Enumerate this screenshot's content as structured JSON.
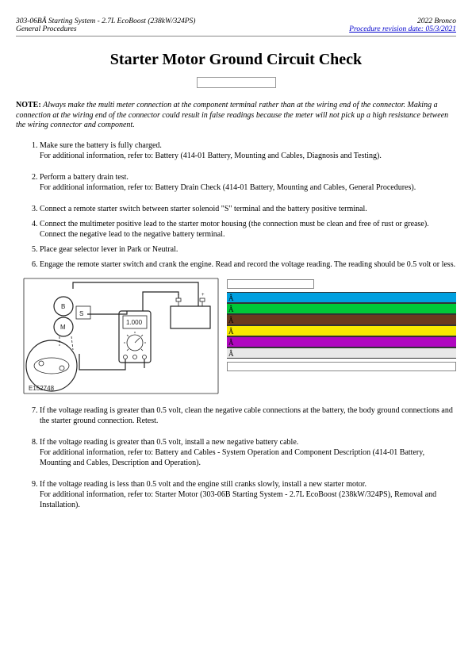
{
  "header": {
    "left_line1": "303-06BÂ Starting System - 2.7L EcoBoost (238kW/324PS)",
    "left_line2": "General Procedures",
    "right_line1": "2022 Bronco",
    "right_link": "Procedure revision date: 05/3/2021"
  },
  "title": "Starter Motor Ground Circuit Check",
  "note": {
    "label": "NOTE:",
    "body": "Always make the multi meter connection at the component terminal rather than at the wiring end of the connector. Making a connection at the wiring end of the connector could result in false readings because the meter will not pick up a high resistance between the wiring connector and component."
  },
  "steps": [
    {
      "text": "Make sure the battery is fully charged.",
      "extra": "For additional information, refer to: Battery (414-01 Battery, Mounting and Cables, Diagnosis and Testing)."
    },
    {
      "text": "Perform a battery drain test.",
      "extra": "For additional information, refer to: Battery Drain Check (414-01 Battery, Mounting and Cables, General Procedures)."
    },
    {
      "text": "Connect a remote starter switch between starter solenoid \"S\" terminal and the battery positive terminal."
    },
    {
      "text": "Connect the multimeter positive lead to the starter motor housing (the connection must be clean and free of rust or grease). Connect the negative lead to the negative battery terminal."
    },
    {
      "text": "Place gear selector lever in Park or Neutral."
    },
    {
      "text": "Engage the remote starter switch and crank the engine. Read and record the voltage reading. The reading should be 0.5 volt or less."
    }
  ],
  "diagram": {
    "ref": "E152748",
    "meter_reading": "1.000",
    "label_b": "B",
    "label_m": "M",
    "label_s": "S"
  },
  "legend": {
    "chars": [
      "Â",
      "Â",
      "Â",
      "Â",
      "Â",
      "Â"
    ],
    "colors": [
      "#00a0e0",
      "#00c838",
      "#6a3a1e",
      "#f7ea00",
      "#b008c0",
      "#e8e8e8"
    ]
  },
  "steps2": [
    {
      "text": "If the voltage reading is greater than 0.5 volt, clean the negative cable connections at the battery, the body ground connections and the starter ground connection. Retest."
    },
    {
      "text": "If the voltage reading is greater than 0.5 volt, install a new negative battery cable.",
      "extra": "For additional information, refer to: Battery and Cables - System Operation and Component Description (414-01 Battery, Mounting and Cables, Description and Operation)."
    },
    {
      "text": "If the voltage reading is less than 0.5 volt and the engine still cranks slowly, install a new starter motor.",
      "extra": "For additional information, refer to: Starter Motor (303-06B Starting System - 2.7L EcoBoost (238kW/324PS), Removal and Installation)."
    }
  ]
}
